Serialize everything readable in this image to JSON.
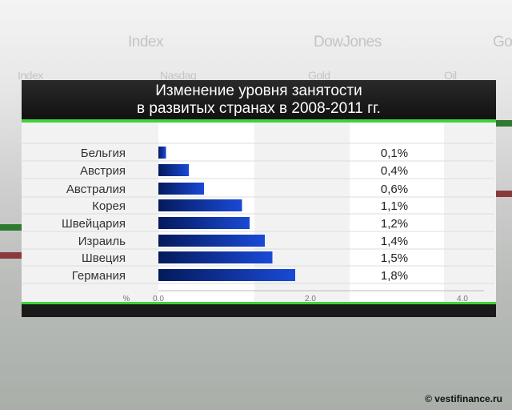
{
  "background": {
    "texts": [
      "Index",
      "DowJones",
      "Go",
      "Index",
      "Nasdaq",
      "Gold",
      "Oil"
    ]
  },
  "copyright": "© vestifinance.ru",
  "chart_data": {
    "type": "bar",
    "orientation": "horizontal",
    "title_line1": "Изменение уровня занятости",
    "title_line2": "в развитых странах в 2008-2011 гг.",
    "categories": [
      "Бельгия",
      "Австрия",
      "Австралия",
      "Корея",
      "Швейцария",
      "Израиль",
      "Швеция",
      "Германия"
    ],
    "values": [
      0.1,
      0.4,
      0.6,
      1.1,
      1.2,
      1.4,
      1.5,
      1.8
    ],
    "value_labels": [
      "0,1%",
      "0,4%",
      "0,6%",
      "1,1%",
      "1,2%",
      "1,4%",
      "1,5%",
      "1,8%"
    ],
    "xlabel": "%",
    "xticks": [
      "0.0",
      "2.0",
      "4.0"
    ],
    "xtick_values": [
      0,
      2,
      4
    ],
    "xlim": [
      0,
      4
    ],
    "bar_color": "#0b2a9a",
    "accent": "#3fd23a"
  }
}
